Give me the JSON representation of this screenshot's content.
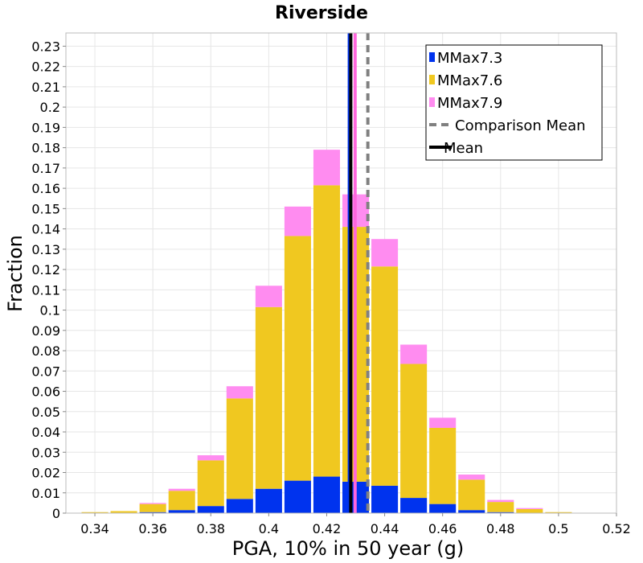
{
  "chart_data": {
    "type": "bar",
    "stacked": true,
    "title": "Riverside",
    "xlabel": "PGA, 10% in 50 year (g)",
    "ylabel": "Fraction",
    "xlim": [
      0.33,
      0.52
    ],
    "ylim": [
      0,
      0.2365
    ],
    "bin_width": 0.01,
    "x_ticks": [
      "0.34",
      "0.36",
      "0.38",
      "0.4",
      "0.42",
      "0.44",
      "0.46",
      "0.48",
      "0.5",
      "0.52"
    ],
    "y_ticks": [
      "0",
      "0.01",
      "0.02",
      "0.03",
      "0.04",
      "0.05",
      "0.06",
      "0.07",
      "0.08",
      "0.09",
      "0.1",
      "0.11",
      "0.12",
      "0.13",
      "0.14",
      "0.15",
      "0.16",
      "0.17",
      "0.18",
      "0.19",
      "0.2",
      "0.21",
      "0.22",
      "0.23"
    ],
    "bins": [
      0.34,
      0.35,
      0.36,
      0.37,
      0.38,
      0.39,
      0.4,
      0.41,
      0.42,
      0.43,
      0.44,
      0.45,
      0.46,
      0.47,
      0.48,
      0.49,
      0.5
    ],
    "series": [
      {
        "name": "MMax7.3",
        "color": "#0033ee",
        "values": [
          0.0,
          0.0,
          0.0005,
          0.0015,
          0.0035,
          0.007,
          0.012,
          0.016,
          0.018,
          0.0155,
          0.0135,
          0.0075,
          0.0045,
          0.0015,
          0.0005,
          0.0,
          0.0
        ]
      },
      {
        "name": "MMax7.6",
        "color": "#f0c820",
        "values": [
          0.0005,
          0.001,
          0.004,
          0.0095,
          0.0225,
          0.0495,
          0.0895,
          0.1205,
          0.1435,
          0.1255,
          0.108,
          0.066,
          0.0375,
          0.015,
          0.005,
          0.002,
          0.0005
        ]
      },
      {
        "name": "MMax7.9",
        "color": "#ff8cf0",
        "values": [
          0.0,
          0.0,
          0.0005,
          0.001,
          0.0025,
          0.006,
          0.0105,
          0.0145,
          0.0175,
          0.016,
          0.0135,
          0.0095,
          0.005,
          0.0025,
          0.001,
          0.0005,
          0.0
        ]
      }
    ],
    "lines": [
      {
        "name": "MMax7.3 mean",
        "x": 0.4278,
        "color": "#0033ee"
      },
      {
        "name": "MMax7.9 mean",
        "x": 0.4298,
        "color": "#ff66dd"
      },
      {
        "name": "Mean",
        "x": 0.4283,
        "color": "#000000",
        "style": "solid"
      },
      {
        "name": "Comparison Mean",
        "x": 0.4342,
        "color": "#808080",
        "style": "dashed"
      }
    ],
    "legend": {
      "position": "top-right",
      "entries": [
        {
          "label": "MMax7.3",
          "kind": "box",
          "color": "#0033ee"
        },
        {
          "label": "MMax7.6",
          "kind": "box",
          "color": "#f0c820"
        },
        {
          "label": "MMax7.9",
          "kind": "box",
          "color": "#ff8cf0"
        },
        {
          "label": "Comparison Mean",
          "kind": "dash",
          "color": "#808080"
        },
        {
          "label": "Mean",
          "kind": "line",
          "color": "#000000"
        }
      ]
    },
    "grid": true
  }
}
